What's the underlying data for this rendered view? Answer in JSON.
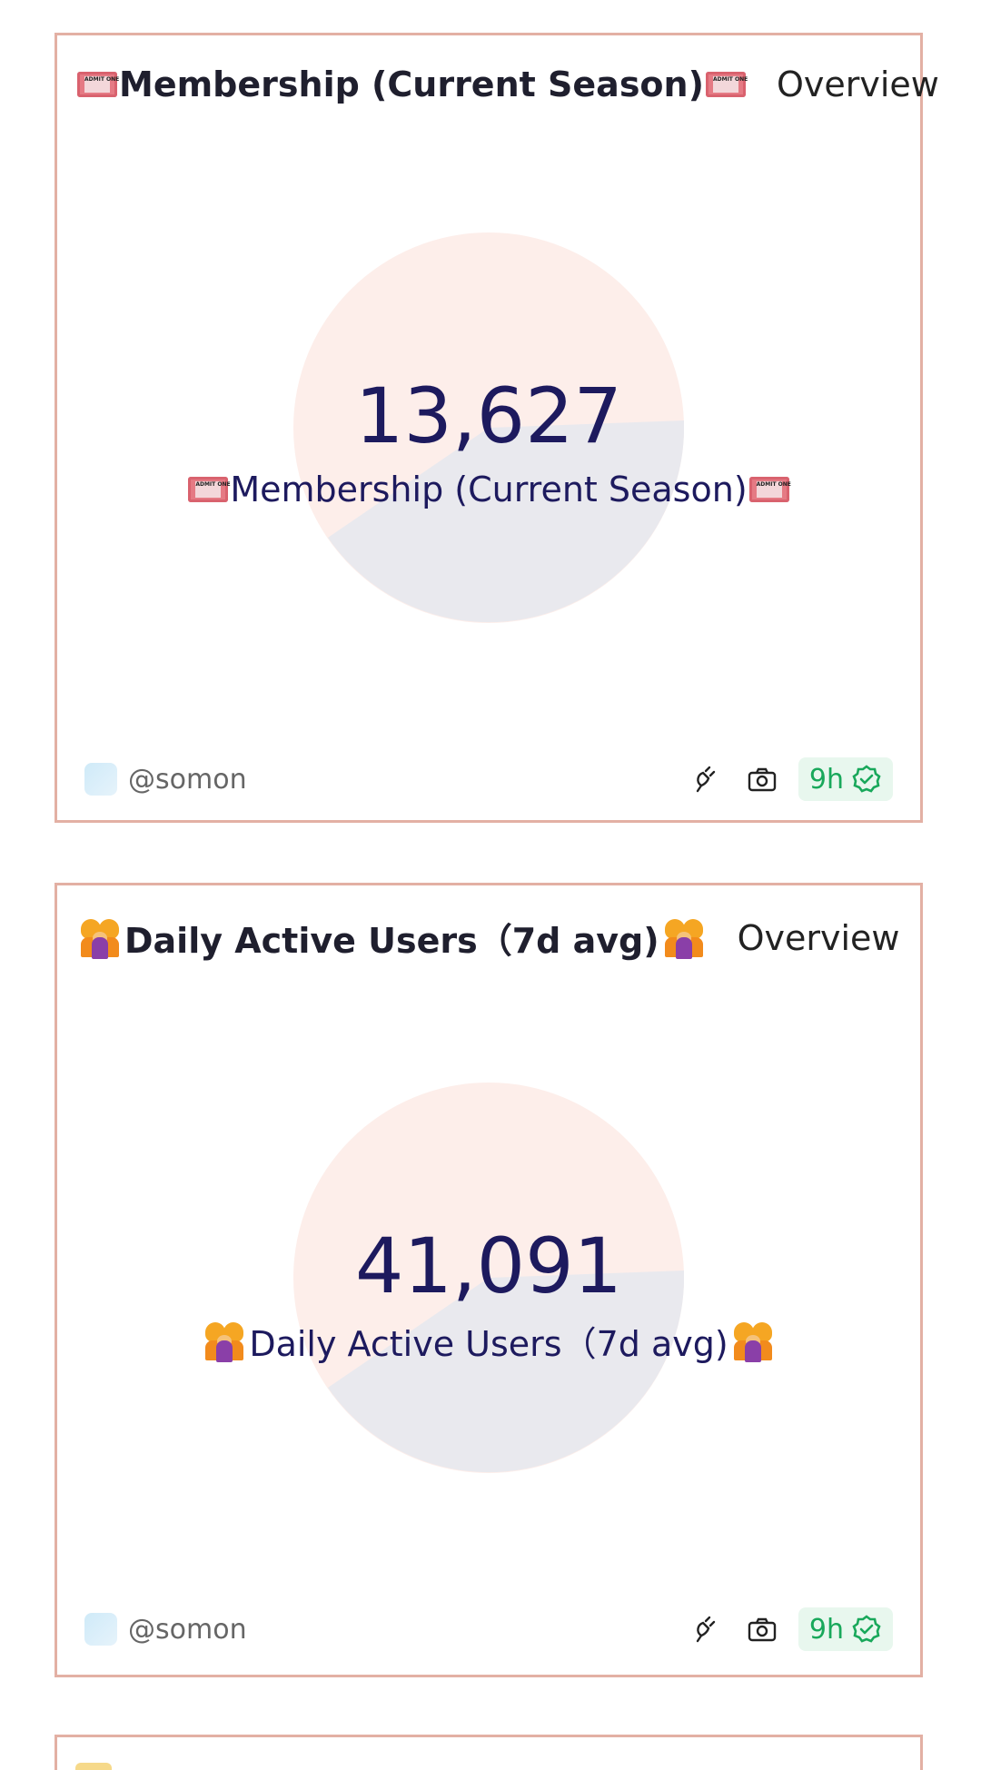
{
  "cards": [
    {
      "title": "Membership (Current Season)",
      "link": "Overview",
      "value": "13,627",
      "label": "Membership (Current Season)",
      "title_icon": "ticket-icon",
      "user": "@somon",
      "badge": "9h"
    },
    {
      "title": "Daily Active Users（7d avg)",
      "link": "Overview",
      "value": "41,091",
      "label": "Daily Active Users（7d avg)",
      "title_icon": "family-icon",
      "user": "@somon",
      "badge": "9h"
    }
  ],
  "colors": {
    "card_border": "#e3b0a4",
    "pie_primary": "#fdeeea",
    "pie_secondary": "#e9e9ee",
    "value_text": "#1d1a5e",
    "badge_bg": "#e8f7ee",
    "badge_text": "#19a85b"
  }
}
